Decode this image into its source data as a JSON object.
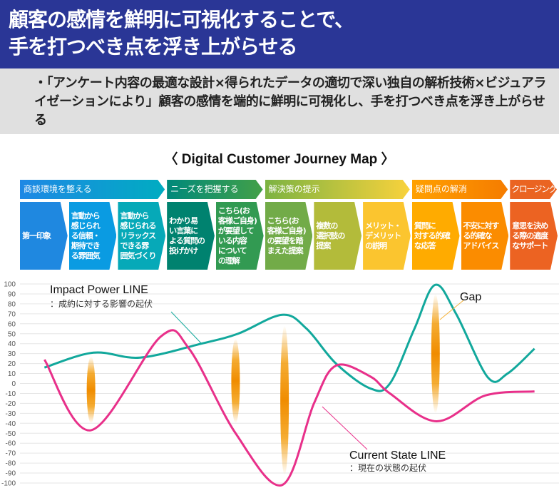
{
  "header": {
    "title_line1": "顧客の感情を鮮明に可視化することで、",
    "title_line2": "手を打つべき点を浮き上がらせる",
    "bullet": "・「アンケート内容の最適な設計×得られたデータの適切で深い独自の解析技術×ビジュアライゼーションにより」顧客の感情を端的に鮮明に可視化し、手を打つべき点を浮き上がらせる"
  },
  "map_title": "〈 Digital Customer Journey Map 〉",
  "phases": [
    {
      "label": "商談環境を整える",
      "from": "#1e88e5",
      "to": "#00acc1",
      "span": 3
    },
    {
      "label": "ニーズを把握する",
      "from": "#00897b",
      "to": "#43a047",
      "span": 2
    },
    {
      "label": "解決策の提示",
      "from": "#7cb342",
      "to": "#f9d23c",
      "span": 3
    },
    {
      "label": "疑問点の解消",
      "from": "#ffa000",
      "to": "#f57c00",
      "span": 2
    },
    {
      "label": "クロージング",
      "from": "#ea6422",
      "to": "#ea6422",
      "span": 1
    }
  ],
  "steps": [
    {
      "label": "第一印象",
      "color": "#1f88e0"
    },
    {
      "label": "言動から\n感じられ\nる信頼・\n期待でき\nる雰囲気",
      "color": "#0a9be2"
    },
    {
      "label": "言動から\n感じられる\nリラックス\nできる雰\n囲気づくり",
      "color": "#06a9b8"
    },
    {
      "label": "わかり易\nい言葉に\nよる質問の\n投げかけ",
      "color": "#00826f"
    },
    {
      "label": "こちら(お\n客様ご自身)\nが要望して\nいる内容\nについて\nの理解",
      "color": "#329a52"
    },
    {
      "label": "こちら(お\n客様ご自身)\nの要望を踏\nまえた提案",
      "color": "#72ab48"
    },
    {
      "label": "複数の\n選択肢の\n提案",
      "color": "#b3bb3a"
    },
    {
      "label": "メリット・\nデメリット\nの説明",
      "color": "#fbc52f"
    },
    {
      "label": "質問に\n対する的確\nな応答",
      "color": "#ffab00"
    },
    {
      "label": "不安に対す\nる的確な\nアドバイス",
      "color": "#fb8c00"
    },
    {
      "label": "意思を決め\nる際の適度\nなサポート",
      "color": "#ec6322"
    }
  ],
  "chart_data": {
    "type": "line",
    "x_unit": "stage position (0–11, aligned to the 11 steps)",
    "ylim": [
      -100,
      100
    ],
    "yticks": [
      100,
      90,
      80,
      70,
      60,
      50,
      40,
      30,
      20,
      10,
      0,
      -10,
      -20,
      -30,
      -40,
      -50,
      -60,
      -70,
      -80,
      -90,
      -100
    ],
    "grid": true,
    "series": [
      {
        "name": "Impact Power LINE",
        "note": "：成約に対する影響の起伏",
        "color": "#12a89c",
        "points": [
          [
            0.5,
            16
          ],
          [
            1.5,
            31
          ],
          [
            2.45,
            26
          ],
          [
            3.7,
            40
          ],
          [
            4.45,
            50
          ],
          [
            5.35,
            69
          ],
          [
            5.85,
            55
          ],
          [
            6.45,
            20
          ],
          [
            7.15,
            -5
          ],
          [
            7.55,
            0
          ],
          [
            8.05,
            55
          ],
          [
            8.47,
            99
          ],
          [
            8.9,
            70
          ],
          [
            9.55,
            6
          ],
          [
            9.95,
            10
          ],
          [
            10.5,
            35
          ]
        ]
      },
      {
        "name": "Current State LINE",
        "note": "：現在の状態の起伏",
        "color": "#e8308a",
        "points": [
          [
            0.5,
            24
          ],
          [
            1.45,
            -47
          ],
          [
            2.87,
            47
          ],
          [
            3.45,
            35
          ],
          [
            4.4,
            -50
          ],
          [
            5.35,
            -102
          ],
          [
            6.0,
            -20
          ],
          [
            6.45,
            18
          ],
          [
            7.15,
            7
          ],
          [
            7.55,
            -10
          ],
          [
            8.5,
            -38
          ],
          [
            9.5,
            -12
          ],
          [
            10.5,
            -8
          ]
        ]
      }
    ],
    "gap_label": "Gap",
    "gaps": [
      {
        "x": 1.45,
        "from": 27,
        "to": -40
      },
      {
        "x": 4.4,
        "from": 45,
        "to": -40
      },
      {
        "x": 5.4,
        "from": 58,
        "to": -92
      },
      {
        "x": 8.48,
        "from": 90,
        "to": -30
      }
    ],
    "gap_color": "#f39800"
  }
}
